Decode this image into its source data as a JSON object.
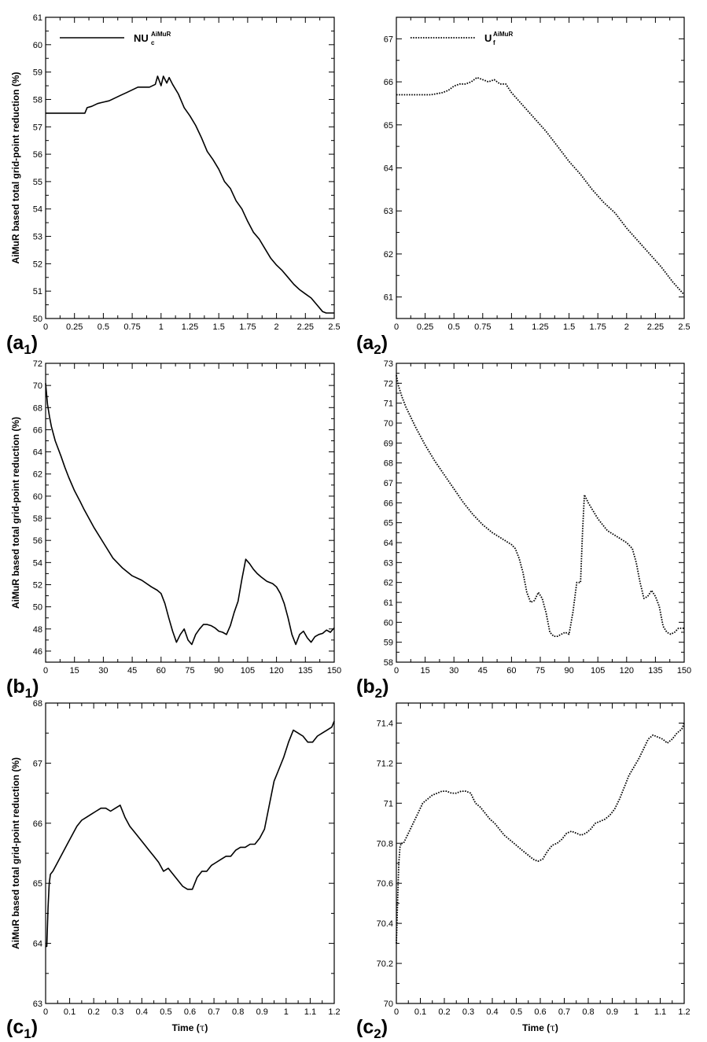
{
  "figure": {
    "ylabel": "AiMuR based total grid-point reduction (%)",
    "xlabel_main": "Time (",
    "xlabel_tau": "τ",
    "xlabel_close": ")",
    "legend_left": {
      "main": "NU",
      "sub": "c",
      "sup": "AiMuR"
    },
    "legend_right": {
      "main": "U",
      "sub": "f",
      "sup": "AiMuR"
    }
  },
  "chart_data": [
    {
      "id": "a1",
      "type": "line",
      "panel_letter": "(a",
      "panel_index": "1",
      "panel_close": ")",
      "line_style": "solid",
      "xlim": [
        0,
        2.5
      ],
      "ylim": [
        50,
        61
      ],
      "xticks": [
        0,
        0.25,
        0.5,
        0.75,
        1,
        1.25,
        1.5,
        1.75,
        2,
        2.25,
        2.5
      ],
      "xtick_labels": [
        "0",
        "0.25",
        "0.5",
        "0.75",
        "1",
        "1.25",
        "1.5",
        "1.75",
        "2",
        "2.25",
        "2.5"
      ],
      "yticks": [
        50,
        51,
        52,
        53,
        54,
        55,
        56,
        57,
        58,
        59,
        60,
        61
      ],
      "ytick_labels": [
        "50",
        "51",
        "52",
        "53",
        "54",
        "55",
        "56",
        "57",
        "58",
        "59",
        "60",
        "61"
      ],
      "x": [
        0,
        0.1,
        0.2,
        0.34,
        0.36,
        0.4,
        0.45,
        0.5,
        0.55,
        0.6,
        0.65,
        0.7,
        0.75,
        0.8,
        0.85,
        0.9,
        0.95,
        0.97,
        1.0,
        1.02,
        1.05,
        1.07,
        1.1,
        1.15,
        1.2,
        1.25,
        1.3,
        1.35,
        1.4,
        1.45,
        1.5,
        1.55,
        1.6,
        1.65,
        1.7,
        1.75,
        1.8,
        1.85,
        1.9,
        1.95,
        2.0,
        2.05,
        2.1,
        2.15,
        2.2,
        2.25,
        2.3,
        2.35,
        2.4,
        2.43,
        2.5
      ],
      "series": [
        {
          "values": [
            57.5,
            57.5,
            57.5,
            57.5,
            57.7,
            57.75,
            57.85,
            57.9,
            57.95,
            58.05,
            58.15,
            58.25,
            58.35,
            58.45,
            58.45,
            58.45,
            58.55,
            58.85,
            58.5,
            58.85,
            58.6,
            58.8,
            58.55,
            58.2,
            57.7,
            57.4,
            57.05,
            56.6,
            56.1,
            55.8,
            55.45,
            55.0,
            54.75,
            54.3,
            54.0,
            53.55,
            53.15,
            52.9,
            52.55,
            52.2,
            51.95,
            51.75,
            51.5,
            51.25,
            51.05,
            50.9,
            50.75,
            50.5,
            50.25,
            50.2,
            50.2
          ]
        }
      ]
    },
    {
      "id": "a2",
      "type": "line",
      "panel_letter": "(a",
      "panel_index": "2",
      "panel_close": ")",
      "line_style": "dotted",
      "xlim": [
        0,
        2.5
      ],
      "ylim": [
        60.5,
        67.5
      ],
      "xticks": [
        0,
        0.25,
        0.5,
        0.75,
        1,
        1.25,
        1.5,
        1.75,
        2,
        2.25,
        2.5
      ],
      "xtick_labels": [
        "0",
        "0.25",
        "0.5",
        "0.75",
        "1",
        "1.25",
        "1.5",
        "1.75",
        "2",
        "2.25",
        "2.5"
      ],
      "yticks": [
        61,
        62,
        63,
        64,
        65,
        66,
        67
      ],
      "ytick_labels": [
        "61",
        "62",
        "63",
        "64",
        "65",
        "66",
        "67"
      ],
      "x": [
        0,
        0.1,
        0.2,
        0.3,
        0.4,
        0.45,
        0.5,
        0.55,
        0.6,
        0.65,
        0.7,
        0.75,
        0.8,
        0.85,
        0.9,
        0.95,
        1.0,
        1.05,
        1.1,
        1.2,
        1.3,
        1.4,
        1.5,
        1.6,
        1.7,
        1.8,
        1.9,
        2.0,
        2.1,
        2.2,
        2.3,
        2.4,
        2.5
      ],
      "series": [
        {
          "values": [
            65.7,
            65.7,
            65.7,
            65.7,
            65.75,
            65.8,
            65.9,
            65.95,
            65.95,
            66.0,
            66.1,
            66.05,
            66.0,
            66.05,
            65.95,
            65.95,
            65.75,
            65.6,
            65.45,
            65.15,
            64.85,
            64.5,
            64.15,
            63.85,
            63.5,
            63.2,
            62.95,
            62.6,
            62.3,
            62.0,
            61.7,
            61.35,
            61.05
          ]
        }
      ]
    },
    {
      "id": "b1",
      "type": "line",
      "panel_letter": "(b",
      "panel_index": "1",
      "panel_close": ")",
      "line_style": "solid",
      "xlim": [
        0,
        150
      ],
      "ylim": [
        45,
        72
      ],
      "xticks": [
        0,
        15,
        30,
        45,
        60,
        75,
        90,
        105,
        120,
        135,
        150
      ],
      "xtick_labels": [
        "0",
        "15",
        "30",
        "45",
        "60",
        "75",
        "90",
        "105",
        "120",
        "135",
        "150"
      ],
      "yticks": [
        46,
        48,
        50,
        52,
        54,
        56,
        58,
        60,
        62,
        64,
        66,
        68,
        70,
        72
      ],
      "ytick_labels": [
        "46",
        "48",
        "50",
        "52",
        "54",
        "56",
        "58",
        "60",
        "62",
        "64",
        "66",
        "68",
        "70",
        "72"
      ],
      "x": [
        0,
        1,
        2,
        3,
        5,
        8,
        10,
        12,
        15,
        18,
        20,
        25,
        30,
        35,
        40,
        45,
        50,
        55,
        58,
        60,
        62,
        64,
        66,
        68,
        70,
        72,
        74,
        76,
        78,
        80,
        82,
        84,
        86,
        88,
        90,
        92,
        94,
        96,
        98,
        100,
        102,
        104,
        106,
        108,
        110,
        112,
        115,
        118,
        120,
        122,
        124,
        126,
        128,
        130,
        132,
        134,
        136,
        138,
        140,
        142,
        144,
        146,
        148,
        150
      ],
      "series": [
        {
          "values": [
            70.2,
            68.3,
            67.2,
            66.3,
            65.0,
            63.6,
            62.6,
            61.7,
            60.5,
            59.5,
            58.8,
            57.2,
            55.8,
            54.4,
            53.5,
            52.8,
            52.4,
            51.8,
            51.5,
            51.2,
            50.3,
            49.0,
            47.8,
            46.8,
            47.5,
            48.0,
            47.0,
            46.6,
            47.5,
            48.0,
            48.4,
            48.4,
            48.3,
            48.1,
            47.8,
            47.7,
            47.5,
            48.3,
            49.5,
            50.5,
            52.5,
            54.3,
            53.9,
            53.4,
            53.0,
            52.7,
            52.3,
            52.1,
            51.8,
            51.2,
            50.3,
            49.0,
            47.5,
            46.6,
            47.5,
            47.8,
            47.2,
            46.8,
            47.3,
            47.5,
            47.6,
            47.9,
            47.7,
            48.1
          ]
        }
      ]
    },
    {
      "id": "b2",
      "type": "line",
      "panel_letter": "(b",
      "panel_index": "2",
      "panel_close": ")",
      "line_style": "dotted",
      "xlim": [
        0,
        150
      ],
      "ylim": [
        58,
        73
      ],
      "xticks": [
        0,
        15,
        30,
        45,
        60,
        75,
        90,
        105,
        120,
        135,
        150
      ],
      "xtick_labels": [
        "0",
        "15",
        "30",
        "45",
        "60",
        "75",
        "90",
        "105",
        "120",
        "135",
        "150"
      ],
      "yticks": [
        58,
        59,
        60,
        61,
        62,
        63,
        64,
        65,
        66,
        67,
        68,
        69,
        70,
        71,
        72,
        73
      ],
      "ytick_labels": [
        "58",
        "59",
        "60",
        "61",
        "62",
        "63",
        "64",
        "65",
        "66",
        "67",
        "68",
        "69",
        "70",
        "71",
        "72",
        "73"
      ],
      "x": [
        0,
        1,
        2,
        3,
        5,
        8,
        10,
        15,
        20,
        25,
        30,
        35,
        40,
        45,
        50,
        55,
        60,
        62,
        64,
        66,
        68,
        70,
        72,
        74,
        76,
        78,
        80,
        82,
        84,
        86,
        88,
        90,
        92,
        94,
        96,
        97,
        98,
        100,
        105,
        110,
        115,
        120,
        123,
        125,
        127,
        129,
        131,
        133,
        135,
        137,
        139,
        141,
        143,
        145,
        147,
        150
      ],
      "series": [
        {
          "values": [
            72.4,
            71.9,
            71.6,
            71.3,
            70.8,
            70.2,
            69.8,
            68.9,
            68.1,
            67.4,
            66.7,
            66.0,
            65.4,
            64.9,
            64.5,
            64.2,
            63.9,
            63.7,
            63.2,
            62.5,
            61.5,
            61.0,
            61.1,
            61.5,
            61.2,
            60.5,
            59.5,
            59.3,
            59.3,
            59.4,
            59.5,
            59.4,
            60.5,
            62.0,
            62.0,
            64.5,
            66.4,
            66.0,
            65.2,
            64.6,
            64.3,
            64.0,
            63.7,
            63.0,
            62.0,
            61.2,
            61.3,
            61.6,
            61.3,
            60.8,
            59.8,
            59.5,
            59.4,
            59.5,
            59.7,
            59.7
          ]
        }
      ]
    },
    {
      "id": "c1",
      "type": "line",
      "panel_letter": "(c",
      "panel_index": "1",
      "panel_close": ")",
      "line_style": "solid",
      "xlim": [
        0,
        1.2
      ],
      "ylim": [
        63,
        68
      ],
      "xticks": [
        0,
        0.1,
        0.2,
        0.3,
        0.4,
        0.5,
        0.6,
        0.7,
        0.8,
        0.9,
        1,
        1.1,
        1.2
      ],
      "xtick_labels": [
        "0",
        "0.1",
        "0.2",
        "0.3",
        "0.4",
        "0.5",
        "0.6",
        "0.7",
        "0.8",
        "0.9",
        "1",
        "1.1",
        "1.2"
      ],
      "yticks": [
        63,
        64,
        65,
        66,
        67,
        68
      ],
      "ytick_labels": [
        "63",
        "64",
        "65",
        "66",
        "67",
        "68"
      ],
      "x": [
        0,
        0.005,
        0.01,
        0.015,
        0.02,
        0.03,
        0.05,
        0.07,
        0.09,
        0.11,
        0.13,
        0.15,
        0.17,
        0.19,
        0.21,
        0.23,
        0.25,
        0.27,
        0.29,
        0.31,
        0.33,
        0.35,
        0.37,
        0.39,
        0.41,
        0.43,
        0.45,
        0.47,
        0.49,
        0.51,
        0.53,
        0.55,
        0.57,
        0.59,
        0.61,
        0.63,
        0.65,
        0.67,
        0.69,
        0.71,
        0.73,
        0.75,
        0.77,
        0.79,
        0.81,
        0.83,
        0.85,
        0.87,
        0.89,
        0.91,
        0.93,
        0.95,
        0.97,
        0.99,
        1.01,
        1.03,
        1.05,
        1.07,
        1.09,
        1.11,
        1.13,
        1.15,
        1.17,
        1.19,
        1.2
      ],
      "series": [
        {
          "values": [
            63.95,
            63.95,
            64.6,
            65.0,
            65.15,
            65.2,
            65.35,
            65.5,
            65.65,
            65.8,
            65.95,
            66.05,
            66.1,
            66.15,
            66.2,
            66.25,
            66.25,
            66.2,
            66.25,
            66.3,
            66.1,
            65.95,
            65.85,
            65.75,
            65.65,
            65.55,
            65.45,
            65.35,
            65.2,
            65.25,
            65.15,
            65.05,
            64.95,
            64.9,
            64.9,
            65.1,
            65.2,
            65.2,
            65.3,
            65.35,
            65.4,
            65.45,
            65.45,
            65.55,
            65.6,
            65.6,
            65.65,
            65.65,
            65.75,
            65.9,
            66.3,
            66.7,
            66.9,
            67.1,
            67.35,
            67.55,
            67.5,
            67.45,
            67.35,
            67.35,
            67.45,
            67.5,
            67.55,
            67.6,
            67.7
          ]
        }
      ]
    },
    {
      "id": "c2",
      "type": "line",
      "panel_letter": "(c",
      "panel_index": "2",
      "panel_close": ")",
      "line_style": "dotted",
      "xlim": [
        0,
        1.2
      ],
      "ylim": [
        70,
        71.5
      ],
      "xticks": [
        0,
        0.1,
        0.2,
        0.3,
        0.4,
        0.5,
        0.6,
        0.7,
        0.8,
        0.9,
        1,
        1.1,
        1.2
      ],
      "xtick_labels": [
        "0",
        "0.1",
        "0.2",
        "0.3",
        "0.4",
        "0.5",
        "0.6",
        "0.7",
        "0.8",
        "0.9",
        "1",
        "1.1",
        "1.2"
      ],
      "yticks": [
        70,
        70.2,
        70.4,
        70.6,
        70.8,
        71,
        71.2,
        71.4
      ],
      "ytick_labels": [
        "70",
        "70.2",
        "70.4",
        "70.6",
        "70.8",
        "71",
        "71.2",
        "71.4"
      ],
      "x": [
        0,
        0.005,
        0.01,
        0.015,
        0.02,
        0.03,
        0.05,
        0.07,
        0.09,
        0.11,
        0.13,
        0.15,
        0.17,
        0.19,
        0.21,
        0.23,
        0.25,
        0.27,
        0.29,
        0.31,
        0.33,
        0.35,
        0.37,
        0.39,
        0.41,
        0.43,
        0.45,
        0.47,
        0.49,
        0.51,
        0.53,
        0.55,
        0.57,
        0.59,
        0.61,
        0.63,
        0.65,
        0.67,
        0.69,
        0.71,
        0.73,
        0.75,
        0.77,
        0.79,
        0.81,
        0.83,
        0.85,
        0.87,
        0.89,
        0.91,
        0.93,
        0.95,
        0.97,
        0.99,
        1.01,
        1.03,
        1.05,
        1.07,
        1.09,
        1.11,
        1.13,
        1.15,
        1.17,
        1.19,
        1.2
      ],
      "series": [
        {
          "values": [
            70.3,
            70.5,
            70.7,
            70.78,
            70.8,
            70.8,
            70.85,
            70.9,
            70.95,
            71.0,
            71.02,
            71.04,
            71.05,
            71.06,
            71.06,
            71.05,
            71.05,
            71.06,
            71.06,
            71.05,
            71.0,
            70.98,
            70.95,
            70.92,
            70.9,
            70.87,
            70.84,
            70.82,
            70.8,
            70.78,
            70.76,
            70.74,
            70.72,
            70.71,
            70.72,
            70.76,
            70.79,
            70.8,
            70.82,
            70.85,
            70.86,
            70.85,
            70.84,
            70.85,
            70.87,
            70.9,
            70.91,
            70.92,
            70.94,
            70.97,
            71.02,
            71.08,
            71.14,
            71.18,
            71.22,
            71.27,
            71.32,
            71.34,
            71.33,
            71.32,
            71.3,
            71.32,
            71.35,
            71.37,
            71.4
          ]
        }
      ]
    }
  ]
}
